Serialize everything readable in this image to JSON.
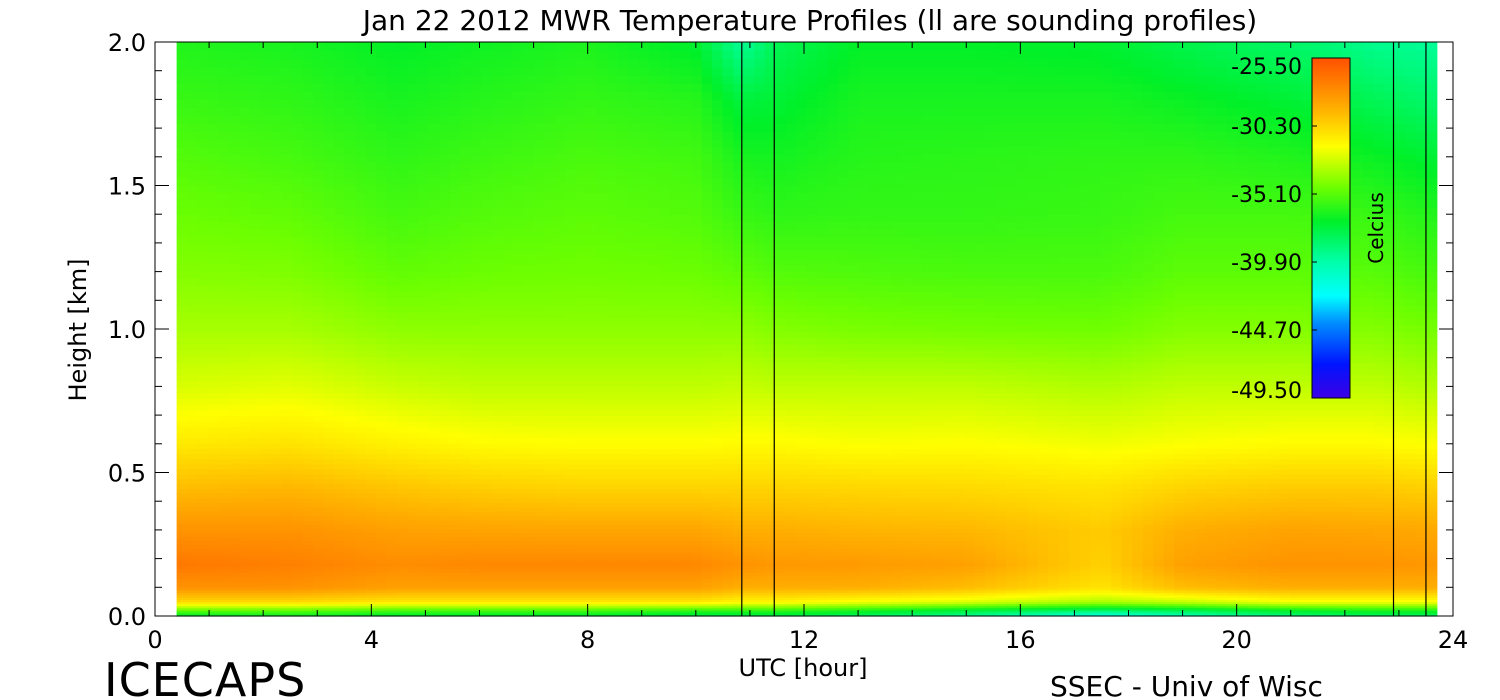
{
  "chart_data": {
    "type": "heatmap",
    "title": "Jan 22 2012 MWR Temperature Profiles (ll are sounding profiles)",
    "xlabel": "UTC [hour]",
    "ylabel": "Height [km]",
    "xlim": [
      0,
      24
    ],
    "ylim": [
      0,
      2.0
    ],
    "x_ticks": [
      "0",
      "4",
      "8",
      "12",
      "16",
      "20",
      "24"
    ],
    "y_ticks": [
      "0.0",
      "0.5",
      "1.0",
      "1.5",
      "2.0"
    ],
    "colorbar": {
      "label": "Celcius",
      "tick_labels": [
        "-25.50",
        "-30.30",
        "-35.10",
        "-39.90",
        "-44.70",
        "-49.50"
      ],
      "ticks": [
        -25.5,
        -30.3,
        -35.1,
        -39.9,
        -44.7,
        -49.5
      ],
      "range": [
        -49.5,
        -25.5
      ],
      "placement": "top-right, inside plot"
    },
    "data_hours": [
      0.4,
      23.7
    ],
    "sounding_times": [
      10.85,
      11.45,
      22.9,
      23.5
    ],
    "temperature_grid": {
      "heights_km": [
        0.0,
        0.02,
        0.05,
        0.1,
        0.18,
        0.3,
        0.45,
        0.6,
        0.8,
        1.0,
        1.2,
        1.4,
        1.6,
        1.8,
        2.0
      ],
      "hours": [
        0.4,
        2.5,
        4.5,
        6,
        8,
        10,
        10.85,
        11.5,
        13,
        15,
        17.5,
        19,
        21,
        22.5,
        23.7
      ],
      "values_celsius": [
        [
          -37.5,
          -35.0,
          -30.5,
          -28.0,
          -27.0,
          -28.0,
          -29.5,
          -31.0,
          -32.5,
          -33.5,
          -34.2,
          -34.7,
          -35.2,
          -35.8,
          -36.3
        ],
        [
          -37.0,
          -35.0,
          -30.5,
          -28.0,
          -27.3,
          -28.0,
          -29.3,
          -30.8,
          -32.3,
          -33.5,
          -34.3,
          -34.9,
          -35.5,
          -36.0,
          -36.5
        ],
        [
          -37.5,
          -35.5,
          -31.0,
          -28.5,
          -27.8,
          -28.5,
          -29.8,
          -31.3,
          -32.8,
          -34.0,
          -34.9,
          -35.5,
          -36.0,
          -36.5,
          -37.0
        ],
        [
          -37.5,
          -35.5,
          -31.0,
          -28.5,
          -27.6,
          -28.6,
          -30.1,
          -31.6,
          -33.0,
          -34.0,
          -34.7,
          -35.2,
          -35.7,
          -36.2,
          -36.7
        ],
        [
          -37.5,
          -35.5,
          -31.0,
          -28.5,
          -27.6,
          -28.7,
          -30.3,
          -31.7,
          -33.0,
          -34.0,
          -34.6,
          -35.0,
          -35.4,
          -35.9,
          -36.4
        ],
        [
          -38.0,
          -36.0,
          -31.0,
          -28.5,
          -27.6,
          -28.7,
          -30.3,
          -31.7,
          -33.0,
          -34.0,
          -34.7,
          -35.2,
          -35.6,
          -36.2,
          -37.2
        ],
        [
          -38.0,
          -36.0,
          -31.5,
          -29.0,
          -28.0,
          -29.0,
          -30.3,
          -31.6,
          -32.9,
          -34.0,
          -35.0,
          -35.8,
          -36.5,
          -37.5,
          -39.5
        ],
        [
          -38.0,
          -36.0,
          -31.5,
          -29.0,
          -28.2,
          -29.0,
          -30.3,
          -31.6,
          -33.0,
          -34.2,
          -35.2,
          -36.0,
          -36.6,
          -37.3,
          -38.0
        ],
        [
          -38.5,
          -36.5,
          -32.0,
          -29.0,
          -28.3,
          -29.2,
          -30.4,
          -31.8,
          -33.0,
          -34.4,
          -35.3,
          -35.9,
          -36.2,
          -36.5,
          -37.0
        ],
        [
          -39.5,
          -37.5,
          -32.5,
          -29.5,
          -28.5,
          -29.3,
          -30.5,
          -31.7,
          -33.0,
          -34.5,
          -35.4,
          -35.9,
          -36.1,
          -36.5,
          -37.0
        ],
        [
          -42.0,
          -38.5,
          -33.5,
          -30.8,
          -30.2,
          -30.0,
          -30.8,
          -32.0,
          -33.3,
          -34.6,
          -35.4,
          -35.8,
          -36.0,
          -36.5,
          -37.2
        ],
        [
          -40.5,
          -38.0,
          -33.0,
          -29.5,
          -28.5,
          -29.0,
          -30.3,
          -31.8,
          -33.0,
          -34.2,
          -35.0,
          -35.5,
          -36.0,
          -36.8,
          -37.8
        ],
        [
          -39.0,
          -37.0,
          -32.0,
          -29.0,
          -28.0,
          -28.6,
          -30.0,
          -31.6,
          -33.0,
          -34.2,
          -35.0,
          -35.5,
          -36.3,
          -37.3,
          -38.4
        ],
        [
          -38.5,
          -36.5,
          -32.0,
          -29.0,
          -28.0,
          -28.7,
          -30.0,
          -31.6,
          -33.0,
          -34.2,
          -35.1,
          -35.8,
          -36.8,
          -38.0,
          -39.3
        ],
        [
          -38.5,
          -36.5,
          -32.0,
          -29.0,
          -28.2,
          -28.8,
          -30.2,
          -31.8,
          -33.3,
          -34.5,
          -35.5,
          -36.3,
          -37.3,
          -38.5,
          -39.5
        ]
      ]
    }
  },
  "footer": {
    "left_text": "ICECAPS",
    "right_text": "SSEC - Univ of Wisc"
  }
}
